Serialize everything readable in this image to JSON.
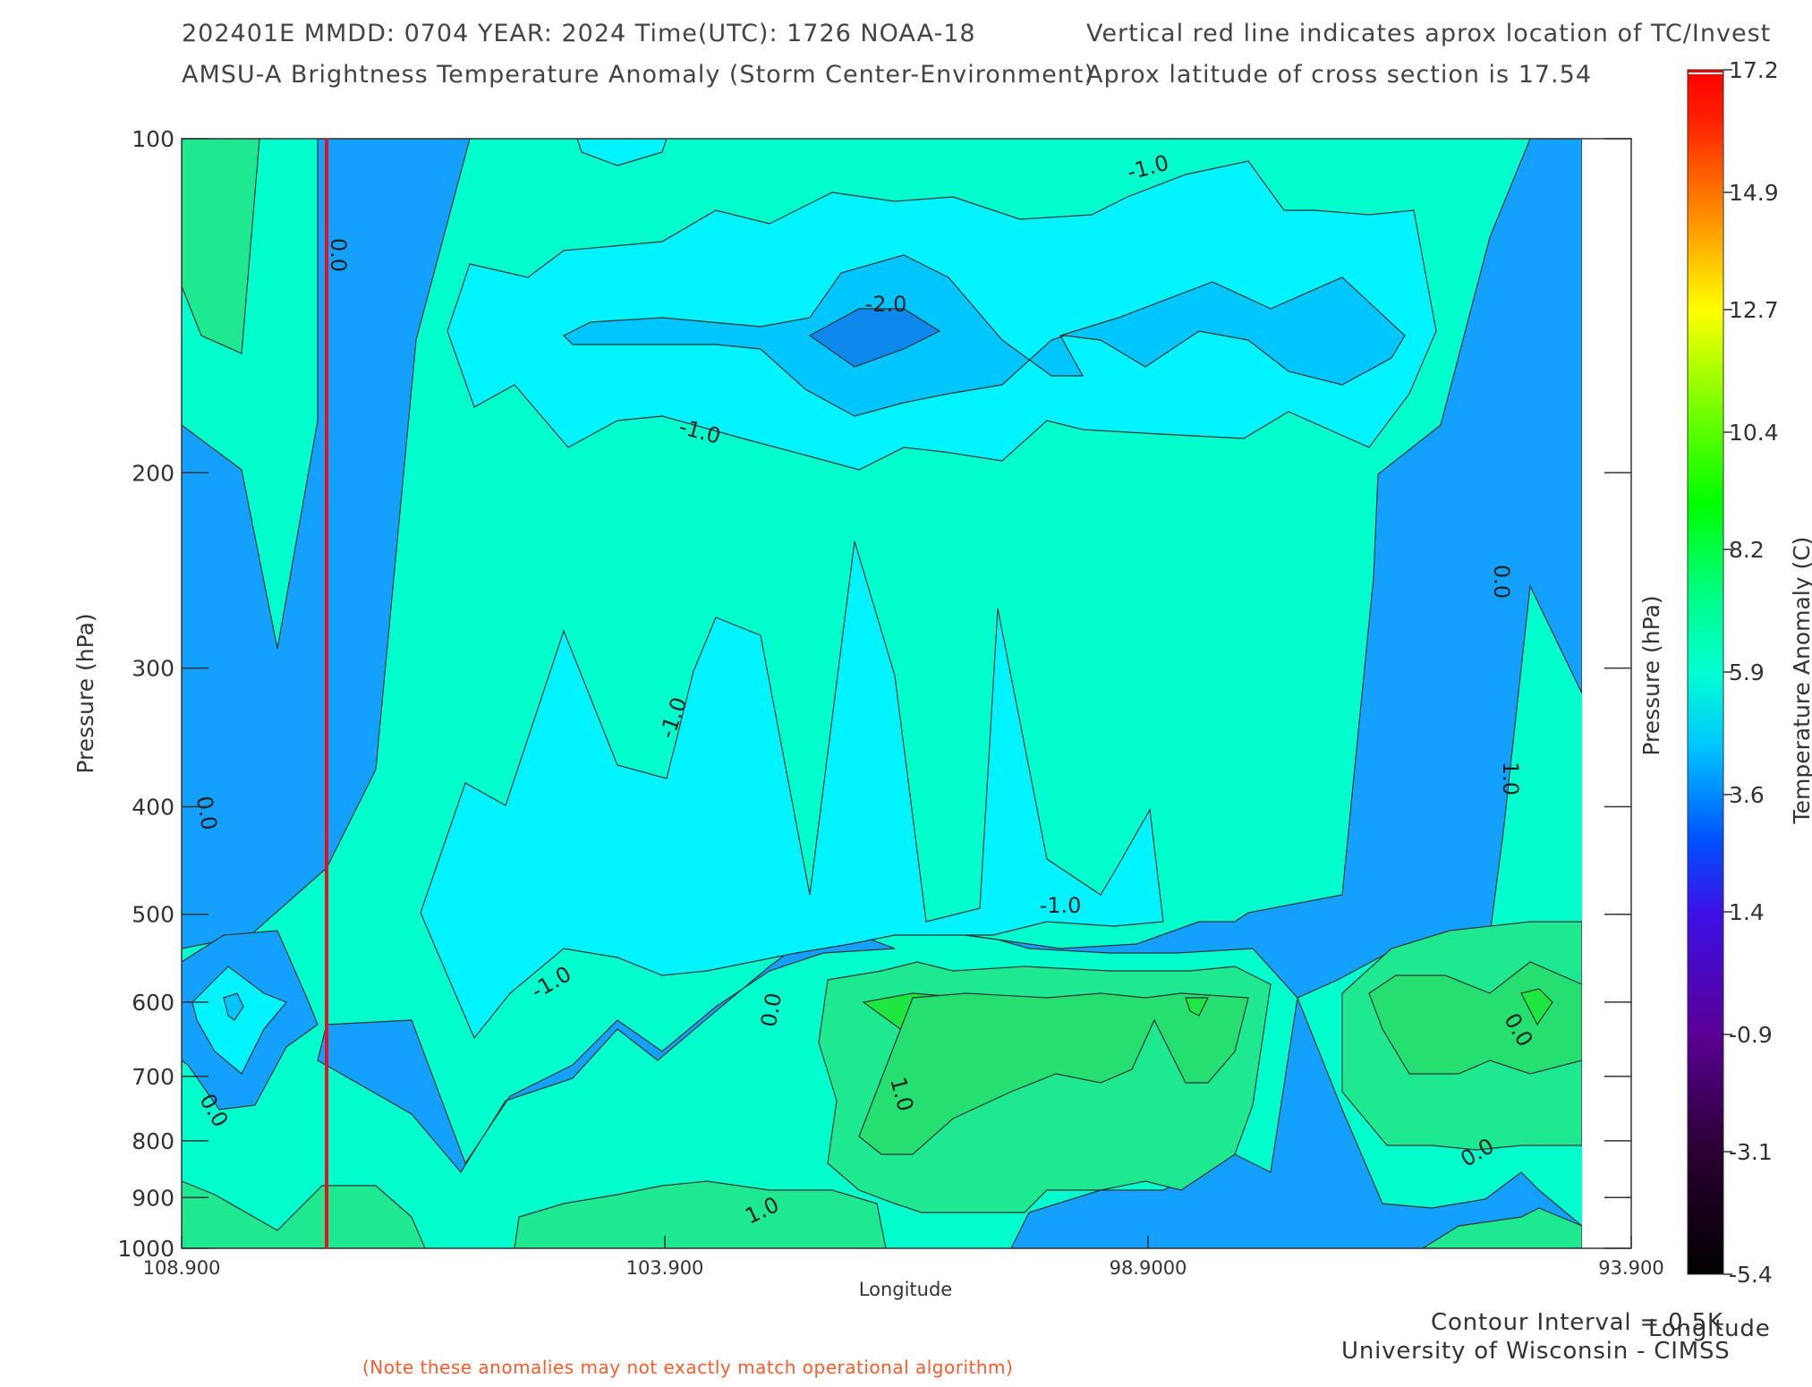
{
  "header": {
    "line1_left": "202401E  MMDD: 0704 YEAR: 2024 Time(UTC): 1726 NOAA-18",
    "line2_left": "AMSU-A Brightness Temperature Anomaly (Storm Center-Environment)",
    "line1_right": "Vertical red line indicates aprox location of TC/Invest",
    "line2_right": "Aprox latitude of cross section is 17.54"
  },
  "footer": {
    "note": "(Note these anomalies may not exactly match operational algorithm)",
    "contour_interval": "Contour Interval = 0.5K",
    "credit": "University of Wisconsin - CIMSS",
    "right_axis_label": "Longitude"
  },
  "chart_data": {
    "type": "filled-contour",
    "xlabel": "Longitude",
    "ylabel": "Pressure (hPa)",
    "right_ylabel": "Pressure (hPa)",
    "xlim": [
      108.9,
      93.9
    ],
    "x_ticks": [
      "108.900",
      "103.900",
      "98.9000",
      "93.900"
    ],
    "y_scale": "log",
    "ylim": [
      1000,
      100
    ],
    "y_ticks": [
      "100",
      "200",
      "300",
      "400",
      "500",
      "600",
      "700",
      "800",
      "900",
      "1000"
    ],
    "y_tick_values": [
      100,
      200,
      300,
      400,
      500,
      600,
      700,
      800,
      900,
      1000
    ],
    "storm_longitude": 107.4,
    "storm_line_color": "#e8101a",
    "contour_labels": [
      "-1.0",
      "-2.0",
      "-1.0",
      "0.0",
      "-1.0",
      "-1.0",
      "-1.0",
      "0.0",
      "0.0",
      "0.0",
      "0.0",
      "1.0",
      "1.0",
      "1.0",
      "0.0",
      "0.0"
    ],
    "colorbar": {
      "label": "Temperature Anomaly (C)",
      "min": -5.4,
      "max": 17.2,
      "ticks": [
        "17.2",
        "14.9",
        "12.7",
        "10.4",
        "8.2",
        "5.9",
        "3.6",
        "1.4",
        "-0.9",
        "-3.1",
        "-5.4"
      ],
      "tick_values": [
        17.2,
        14.9,
        12.7,
        10.4,
        8.2,
        5.9,
        3.6,
        1.4,
        -0.9,
        -3.1,
        -5.4
      ]
    },
    "level_colors": {
      "level_minus2": "#0f88ee",
      "level_minus1": "#00c6ff",
      "level_minus05": "#00f4ff",
      "level_0": "#00ffcc",
      "level_05": "#13a0ff",
      "level_1": "#1ee890",
      "level_15": "#25e070",
      "level_2": "#1ee840"
    }
  }
}
